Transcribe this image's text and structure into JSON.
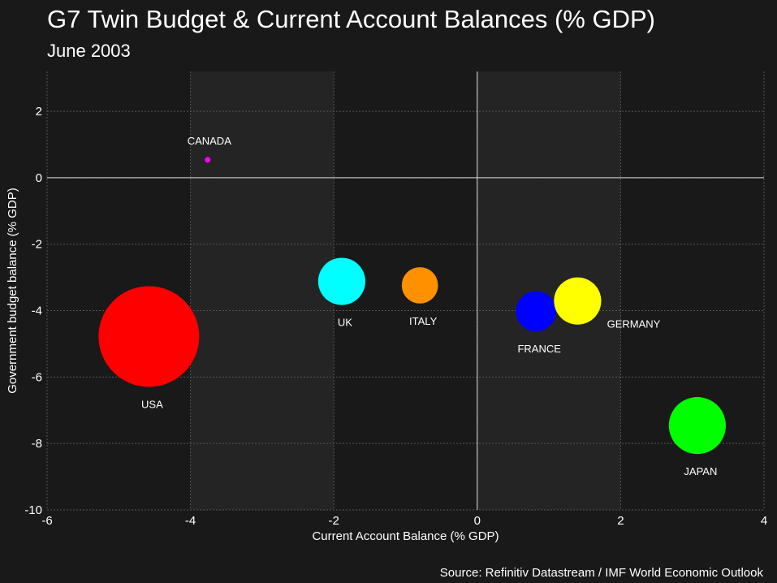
{
  "chart_data": {
    "type": "scatter",
    "title": "G7 Twin Budget & Current Account Balances (% GDP)",
    "subtitle": "June 2003",
    "source": "Source: Refinitiv Datastream / IMF World Economic Outlook",
    "xlabel": "Current Account Balance (% GDP)",
    "ylabel": "Government budget balance (% GDP)",
    "xlim": [
      -6,
      4
    ],
    "ylim": [
      -10,
      3.2
    ],
    "xticks": [
      -6,
      -4,
      -2,
      0,
      2,
      4
    ],
    "yticks": [
      2,
      0,
      -2,
      -4,
      -6,
      -8,
      -10
    ],
    "grid": true,
    "shaded_x_bands": [
      [
        -4,
        -2
      ],
      [
        0,
        2
      ]
    ],
    "colors": {
      "background": "#191919",
      "band": "#242424",
      "grid": "#555555",
      "zero_line": "#dddddd"
    },
    "points": [
      {
        "label": "USA",
        "x": -4.58,
        "y": -4.78,
        "size": 100,
        "color": "#ff0000",
        "label_position": "below"
      },
      {
        "label": "CANADA",
        "x": -3.76,
        "y": 0.54,
        "size": 0.3,
        "color": "#ff00ff",
        "label_position": "above"
      },
      {
        "label": "UK",
        "x": -1.89,
        "y": -3.12,
        "size": 22,
        "color": "#00ffff",
        "label_position": "below"
      },
      {
        "label": "ITALY",
        "x": -0.8,
        "y": -3.24,
        "size": 13,
        "color": "#ff9000",
        "label_position": "below"
      },
      {
        "label": "FRANCE",
        "x": 0.82,
        "y": -4.02,
        "size": 16,
        "color": "#0000ff",
        "label_position": "below"
      },
      {
        "label": "GERMANY",
        "x": 1.4,
        "y": -3.71,
        "size": 22,
        "color": "#ffff00",
        "label_position": "right"
      },
      {
        "label": "JAPAN",
        "x": 3.07,
        "y": -7.46,
        "size": 32,
        "color": "#00ff00",
        "label_position": "below"
      }
    ]
  }
}
